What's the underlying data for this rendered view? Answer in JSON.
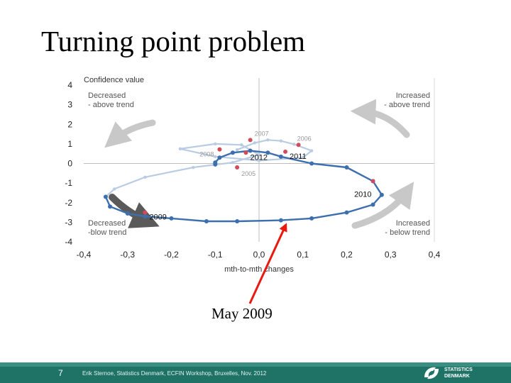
{
  "slide": {
    "title": "Turning point problem",
    "annotation": "May 2009",
    "page_number": "7",
    "footer_text": "Erik Sternoe, Statistics Denmark, ECFIN Workshop, Bruxelles, Nov. 2012",
    "logo_line1": "STATISTICS",
    "logo_line2": "DENMARK"
  },
  "colors": {
    "series_dark": "#3d6fae",
    "series_light": "#b9cce3",
    "year_marker": "#d24b5a",
    "arrow_gray": "#c8c8c8",
    "arrow_dark": "#5a5a5a",
    "annotation_arrow": "#e8190f",
    "footer": "#1e7266"
  },
  "chart_data": {
    "type": "scatter",
    "ylabel": "Confidence value",
    "xlabel": "mth-to-mth  changes",
    "xlim": [
      -0.4,
      0.4
    ],
    "ylim": [
      -4,
      4
    ],
    "x_ticks": [
      -0.4,
      -0.3,
      -0.2,
      -0.1,
      0.0,
      0.1,
      0.2,
      0.3,
      0.4
    ],
    "x_tick_labels": [
      "-0,4",
      "-0,3",
      "-0,2",
      "-0,1",
      "0,0",
      "0,1",
      "0,2",
      "0,3",
      "0,4"
    ],
    "y_ticks": [
      4,
      3,
      2,
      1,
      0,
      -1,
      -2,
      -3,
      -4
    ],
    "y_tick_labels": [
      "4",
      "3",
      "2",
      "1",
      "0",
      "-1",
      "-2",
      "-3",
      "-4"
    ],
    "grid": "crosshair at zero",
    "quadrant_labels": [
      {
        "position": "top-left",
        "lines": [
          "Decreased",
          "- above trend"
        ]
      },
      {
        "position": "top-right",
        "lines": [
          "Increased",
          "- above trend"
        ]
      },
      {
        "position": "bottom-left",
        "lines": [
          "Decreased",
          "-blow trend"
        ]
      },
      {
        "position": "bottom-right",
        "lines": [
          "Increased",
          "- below trend"
        ]
      }
    ],
    "series": [
      {
        "style": "light",
        "points": [
          [
            -0.05,
            0.7
          ],
          [
            -0.01,
            1.05
          ],
          [
            0.02,
            1.2
          ],
          [
            0.05,
            1.15
          ],
          [
            0.08,
            0.98
          ],
          [
            0.12,
            0.65
          ],
          [
            0.1,
            0.3
          ],
          [
            0.0,
            0.15
          ],
          [
            -0.1,
            0.35
          ],
          [
            -0.18,
            0.75
          ],
          [
            -0.1,
            1.0
          ],
          [
            -0.04,
            0.95
          ],
          [
            0.0,
            0.45
          ],
          [
            -0.06,
            0.05
          ],
          [
            -0.15,
            -0.2
          ],
          [
            -0.26,
            -0.7
          ],
          [
            -0.33,
            -1.3
          ],
          [
            -0.35,
            -1.7
          ]
        ]
      },
      {
        "style": "dark",
        "points": [
          [
            -0.35,
            -1.7
          ],
          [
            -0.34,
            -2.2
          ],
          [
            -0.3,
            -2.55
          ],
          [
            -0.26,
            -2.7
          ],
          [
            -0.2,
            -2.8
          ],
          [
            -0.12,
            -2.95
          ],
          [
            -0.05,
            -2.95
          ],
          [
            0.05,
            -2.9
          ],
          [
            0.12,
            -2.8
          ],
          [
            0.2,
            -2.5
          ],
          [
            0.26,
            -2.1
          ],
          [
            0.28,
            -1.6
          ],
          [
            0.26,
            -0.9
          ],
          [
            0.2,
            -0.2
          ],
          [
            0.12,
            0.0
          ],
          [
            0.05,
            0.35
          ],
          [
            0.02,
            0.55
          ],
          [
            -0.02,
            0.65
          ],
          [
            -0.06,
            0.55
          ],
          [
            -0.09,
            0.3
          ],
          [
            -0.1,
            0.05
          ],
          [
            -0.1,
            -0.05
          ]
        ]
      }
    ],
    "labeled_points": [
      {
        "label": "2007",
        "x": -0.02,
        "y": 1.2,
        "style": "light"
      },
      {
        "label": "2006",
        "x": 0.09,
        "y": 0.95,
        "style": "light"
      },
      {
        "label": "2008",
        "x": -0.09,
        "y": 0.72,
        "style": "light"
      },
      {
        "label": "2005",
        "x": -0.05,
        "y": -0.2,
        "style": "light"
      },
      {
        "label": "2012",
        "x": -0.03,
        "y": 0.55,
        "style": "dark"
      },
      {
        "label": "2011",
        "x": 0.06,
        "y": 0.6,
        "style": "dark"
      },
      {
        "label": "2010",
        "x": 0.26,
        "y": -0.9,
        "style": "dark"
      },
      {
        "label": "2009",
        "x": -0.26,
        "y": -2.5,
        "style": "dark"
      }
    ],
    "annotation": {
      "text": "May 2009",
      "x": 0.06,
      "y": -2.9
    }
  }
}
